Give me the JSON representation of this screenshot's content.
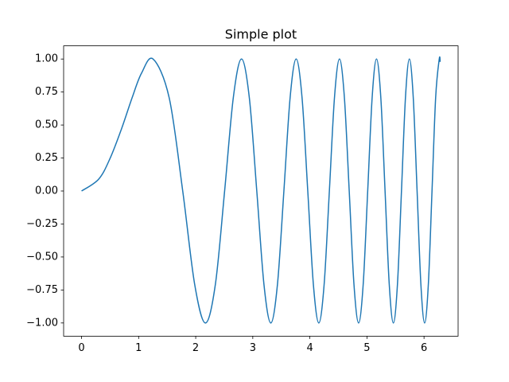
{
  "chart_data": {
    "type": "line",
    "title": "Simple plot",
    "color": "#1f77b4",
    "x": [
      0,
      0.3,
      0.5,
      0.7,
      0.8862,
      1.05,
      1.2533,
      1.535,
      1.7725,
      1.9817,
      2.1708,
      2.3447,
      2.5066,
      2.6587,
      2.8025,
      2.9393,
      3.07,
      3.1954,
      3.316,
      3.4324,
      3.5449,
      3.654,
      3.7599,
      3.863,
      3.9633,
      4.0612,
      4.1568,
      4.2502,
      4.3417,
      4.4311,
      4.5189,
      4.605,
      4.6895,
      4.7725,
      4.8541,
      4.9343,
      5.0133,
      5.091,
      5.1675,
      5.243,
      5.3174,
      5.3907,
      5.4631,
      5.5345,
      5.605,
      5.6747,
      5.7434,
      5.8114,
      5.8786,
      5.945,
      6.0107,
      6.0757,
      6.14,
      6.2036,
      6.2666,
      6.2832
    ],
    "values": [
      0,
      0.0899,
      0.2474,
      0.4706,
      0.7071,
      0.8923,
      1,
      0.7071,
      0,
      -0.7071,
      -1,
      -0.7071,
      0,
      0.7071,
      1,
      0.7071,
      0,
      -0.7071,
      -1,
      -0.7071,
      0,
      0.7071,
      1,
      0.7071,
      0,
      -0.7071,
      -1,
      -0.7071,
      0,
      0.7071,
      1,
      0.7071,
      0,
      -0.7071,
      -1,
      -0.7071,
      0,
      0.7071,
      1,
      0.7071,
      0,
      -0.7071,
      -1,
      -0.7071,
      0,
      0.7071,
      1,
      0.7071,
      0,
      -0.7071,
      -1,
      -0.7071,
      0,
      0.7071,
      1,
      0.9786
    ],
    "xlim": [
      -0.314,
      6.597
    ],
    "ylim": [
      -1.1,
      1.1
    ],
    "xticks": [
      0,
      1,
      2,
      3,
      4,
      5,
      6
    ],
    "yticks": [
      {
        "value": -1,
        "label": "−1.00"
      },
      {
        "value": -0.75,
        "label": "−0.75"
      },
      {
        "value": -0.5,
        "label": "−0.50"
      },
      {
        "value": -0.25,
        "label": "−0.25"
      },
      {
        "value": 0,
        "label": "0.00"
      },
      {
        "value": 0.25,
        "label": "0.25"
      },
      {
        "value": 0.5,
        "label": "0.50"
      },
      {
        "value": 0.75,
        "label": "0.75"
      },
      {
        "value": 1,
        "label": "1.00"
      }
    ],
    "grid": false
  }
}
